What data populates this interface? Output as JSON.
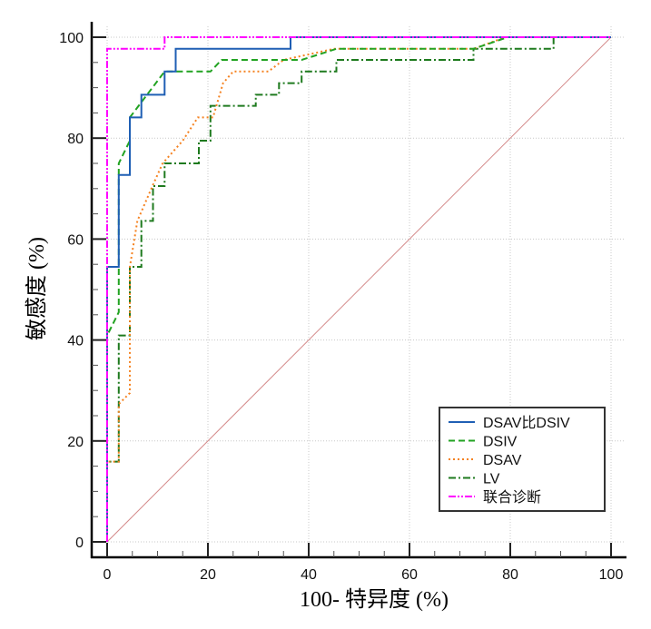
{
  "chart_data": {
    "type": "line",
    "title": "",
    "xlabel": "100- 特异度 (%)",
    "ylabel": "敏感度 (%)",
    "xlim": [
      0,
      100
    ],
    "ylim": [
      0,
      100
    ],
    "xticks": [
      0,
      20,
      40,
      60,
      80,
      100
    ],
    "yticks": [
      0,
      20,
      40,
      60,
      80,
      100
    ],
    "xtick_labels": [
      "0",
      "20",
      "40",
      "60",
      "80",
      "100"
    ],
    "ytick_labels": [
      "0",
      "20",
      "40",
      "60",
      "80",
      "100"
    ],
    "grid": true,
    "legend_position": "bottom-right",
    "reference_line": {
      "name": "diagonal",
      "x": [
        0,
        100
      ],
      "y": [
        0,
        100
      ],
      "color": "#d48a8a"
    },
    "series": [
      {
        "name": "DSAV比DSIV",
        "color": "#1f5fb4",
        "dash": "solid",
        "x": [
          0,
          0,
          2.3,
          2.3,
          4.5,
          4.5,
          6.8,
          6.8,
          11.4,
          11.4,
          13.6,
          13.6,
          36.4,
          36.4,
          100
        ],
        "y": [
          0,
          54.5,
          54.5,
          72.7,
          72.7,
          84.1,
          84.1,
          88.6,
          88.6,
          93.2,
          93.2,
          97.7,
          97.7,
          100,
          100
        ]
      },
      {
        "name": "DSIV",
        "color": "#22a322",
        "dash": "dashed",
        "x": [
          0,
          0,
          2.3,
          2.3,
          4.5,
          4.5,
          11.4,
          20.5,
          22.7,
          38.6,
          45.5,
          72.7,
          79.5,
          100
        ],
        "y": [
          0,
          40.9,
          45.5,
          75.0,
          79.5,
          84.1,
          93.2,
          93.2,
          95.5,
          95.5,
          97.7,
          97.7,
          100,
          100
        ]
      },
      {
        "name": "DSAV",
        "color": "#f58220",
        "dash": "dotted",
        "x": [
          0,
          0,
          2.3,
          2.3,
          4.5,
          4.5,
          6,
          9,
          11,
          15,
          18,
          21,
          23,
          25,
          32,
          35,
          45,
          72.7,
          79,
          100
        ],
        "y": [
          0,
          15.9,
          15.9,
          27.3,
          29.5,
          54.5,
          63.6,
          70.5,
          75,
          79.5,
          84.1,
          84.1,
          90.9,
          93.2,
          93.2,
          95.5,
          97.7,
          97.7,
          100,
          100
        ]
      },
      {
        "name": "LV",
        "color": "#1e7a1e",
        "dash": "dashdot",
        "x": [
          0,
          0,
          2.3,
          2.3,
          4.5,
          4.5,
          6.8,
          6.8,
          9.1,
          9.1,
          11.4,
          11.4,
          18.2,
          18.2,
          20.5,
          20.5,
          29.5,
          29.5,
          34.1,
          34.1,
          38.6,
          38.6,
          45.5,
          45.5,
          72.7,
          72.7,
          88.6,
          88.6,
          100
        ],
        "y": [
          0,
          15.9,
          15.9,
          40.9,
          40.9,
          54.5,
          54.5,
          63.6,
          63.6,
          70.5,
          70.5,
          75,
          75,
          79.5,
          79.5,
          86.4,
          86.4,
          88.6,
          88.6,
          90.9,
          90.9,
          93.2,
          93.2,
          95.5,
          95.5,
          97.7,
          97.7,
          100,
          100
        ]
      },
      {
        "name": "联合诊断",
        "color": "#ff00ff",
        "dash": "dashdotdot",
        "x": [
          0,
          0,
          11.4,
          11.4,
          100
        ],
        "y": [
          0,
          97.7,
          97.7,
          100,
          100
        ]
      }
    ]
  }
}
